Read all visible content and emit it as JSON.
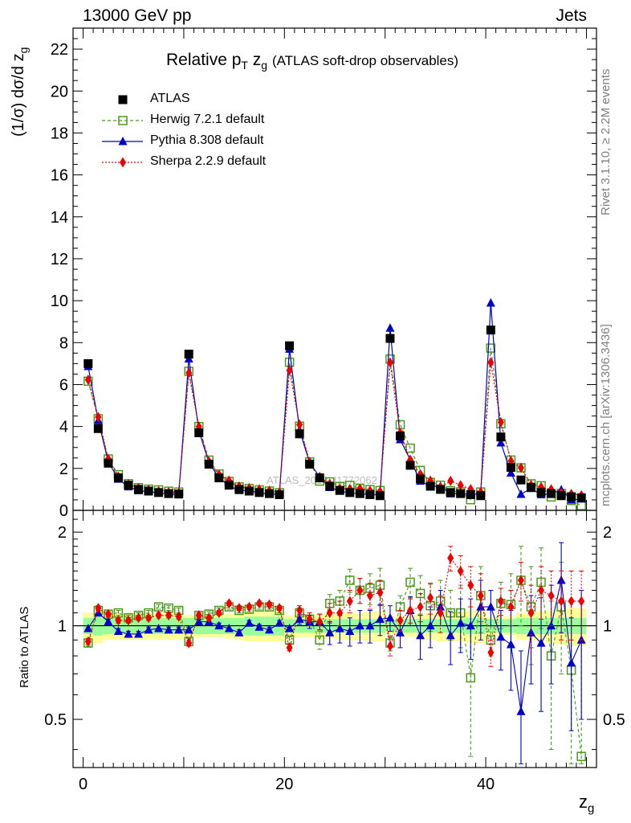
{
  "header": {
    "left": "13000 GeV pp",
    "right": "Jets"
  },
  "side_labels": {
    "top": "Rivet 3.1.10, ≥ 2.2M events",
    "bottom": "mcplots.cern.ch [arXiv:1306.3436]"
  },
  "watermark": "ATLAS_2019_I1772062",
  "chart_data": {
    "type": "scatter",
    "title": "Relative p_T z_g (ATLAS soft-drop observables)",
    "title_main": "Relative p",
    "title_sub": "T",
    "title_zg": "z",
    "title_zg_sub": "g",
    "title_rest": "(ATLAS soft-drop observables)",
    "xlabel": "z_g",
    "xlabel_main": "z",
    "xlabel_sub": "g",
    "ylabel": "(1/σ) dσ/d z_g",
    "ylabel_main": "(1/σ) dσ/d z",
    "ylabel_sub": "g",
    "ratio_ylabel": "Ratio to ATLAS",
    "xlim": [
      -1,
      51
    ],
    "ylim": [
      0,
      23
    ],
    "ratio_ylim": [
      0.35,
      2.35
    ],
    "x_ticks": [
      0,
      20,
      40
    ],
    "y_ticks": [
      0,
      2,
      4,
      6,
      8,
      10,
      12,
      14,
      16,
      18,
      20,
      22
    ],
    "ratio_ticks": [
      0.5,
      1,
      2
    ],
    "legend_position": "top-left",
    "x": [
      0.5,
      1.5,
      2.5,
      3.5,
      4.5,
      5.5,
      6.5,
      7.5,
      8.5,
      9.5,
      10.5,
      11.5,
      12.5,
      13.5,
      14.5,
      15.5,
      16.5,
      17.5,
      18.5,
      19.5,
      20.5,
      21.5,
      22.5,
      23.5,
      24.5,
      25.5,
      26.5,
      27.5,
      28.5,
      29.5,
      30.5,
      31.5,
      32.5,
      33.5,
      34.5,
      35.5,
      36.5,
      37.5,
      38.5,
      39.5,
      40.5,
      41.5,
      42.5,
      43.5,
      44.5,
      45.5,
      46.5,
      47.5,
      48.5,
      49.5
    ],
    "series": [
      {
        "name": "ATLAS",
        "color": "#000000",
        "marker": "square",
        "values": [
          7.0,
          3.9,
          2.25,
          1.55,
          1.2,
          1.0,
          0.92,
          0.85,
          0.8,
          0.78,
          7.45,
          3.7,
          2.2,
          1.55,
          1.2,
          1.0,
          0.92,
          0.85,
          0.8,
          0.75,
          7.85,
          3.65,
          2.2,
          1.55,
          1.15,
          0.95,
          0.85,
          0.8,
          0.75,
          0.7,
          8.2,
          3.55,
          2.15,
          1.5,
          1.15,
          1.0,
          0.85,
          0.8,
          0.75,
          0.7,
          8.6,
          3.5,
          2.05,
          1.45,
          1.1,
          0.85,
          0.8,
          0.7,
          0.65,
          0.6
        ],
        "band_inner": [
          0.06,
          0.07,
          0.06,
          0.06,
          0.06,
          0.06,
          0.06,
          0.06,
          0.06,
          0.06,
          0.06,
          0.06,
          0.06,
          0.06,
          0.06,
          0.06,
          0.07,
          0.07,
          0.07,
          0.07,
          0.05,
          0.05,
          0.05,
          0.05,
          0.05,
          0.05,
          0.05,
          0.05,
          0.05,
          0.05,
          0.04,
          0.05,
          0.05,
          0.05,
          0.05,
          0.05,
          0.05,
          0.05,
          0.06,
          0.06,
          0.05,
          0.05,
          0.05,
          0.06,
          0.06,
          0.06,
          0.06,
          0.06,
          0.06,
          0.06
        ],
        "band_outer": [
          0.1,
          0.12,
          0.1,
          0.1,
          0.1,
          0.1,
          0.1,
          0.1,
          0.1,
          0.1,
          0.08,
          0.08,
          0.08,
          0.08,
          0.09,
          0.1,
          0.11,
          0.11,
          0.11,
          0.11,
          0.08,
          0.08,
          0.08,
          0.09,
          0.09,
          0.1,
          0.1,
          0.1,
          0.11,
          0.11,
          0.06,
          0.07,
          0.08,
          0.09,
          0.1,
          0.11,
          0.11,
          0.11,
          0.12,
          0.12,
          0.07,
          0.07,
          0.07,
          0.1,
          0.1,
          0.11,
          0.12,
          0.13,
          0.14,
          0.14
        ]
      },
      {
        "name": "Herwig 7.2.1 default",
        "color": "#4b9a1c",
        "marker": "open-square",
        "line": "dashed",
        "values": [
          0.88,
          1.12,
          1.09,
          1.1,
          1.06,
          1.08,
          1.1,
          1.15,
          1.14,
          1.12,
          0.89,
          1.08,
          1.09,
          1.12,
          1.15,
          1.12,
          1.13,
          1.15,
          1.15,
          1.12,
          0.9,
          1.1,
          1.05,
          0.9,
          1.18,
          1.2,
          1.4,
          1.3,
          1.32,
          1.35,
          0.88,
          1.15,
          1.38,
          1.27,
          1.16,
          1.2,
          1.1,
          1.1,
          0.68,
          1.25,
          0.9,
          1.18,
          1.17,
          1.4,
          1.15,
          1.38,
          0.8,
          1.15,
          0.72,
          0.38
        ],
        "errors": [
          0.02,
          0.02,
          0.02,
          0.02,
          0.02,
          0.02,
          0.02,
          0.02,
          0.02,
          0.02,
          0.02,
          0.02,
          0.02,
          0.02,
          0.02,
          0.02,
          0.02,
          0.02,
          0.02,
          0.02,
          0.02,
          0.04,
          0.05,
          0.06,
          0.08,
          0.1,
          0.12,
          0.12,
          0.15,
          0.18,
          0.05,
          0.1,
          0.15,
          0.18,
          0.2,
          0.2,
          0.2,
          0.25,
          0.3,
          0.3,
          0.1,
          0.2,
          0.3,
          0.4,
          0.4,
          0.4,
          0.4,
          0.45,
          0.5,
          0.5
        ]
      },
      {
        "name": "Pythia 8.308 default",
        "color": "#0000cc",
        "marker": "triangle",
        "line": "solid",
        "values": [
          0.98,
          1.1,
          1.03,
          0.96,
          0.94,
          0.94,
          0.97,
          0.98,
          0.97,
          0.97,
          0.97,
          1.03,
          1.03,
          1.0,
          0.98,
          0.95,
          1.02,
          0.99,
          0.97,
          1.02,
          0.98,
          1.05,
          1.03,
          1.03,
          0.95,
          0.98,
          0.96,
          1.0,
          1.0,
          1.05,
          1.06,
          0.95,
          1.12,
          0.93,
          1.0,
          1.15,
          0.93,
          1.02,
          1.0,
          1.15,
          1.15,
          0.92,
          0.87,
          0.53,
          0.95,
          0.88,
          1.0,
          1.4,
          0.76,
          0.9
        ],
        "errors": [
          0.02,
          0.02,
          0.02,
          0.02,
          0.02,
          0.02,
          0.02,
          0.02,
          0.02,
          0.02,
          0.02,
          0.02,
          0.02,
          0.02,
          0.02,
          0.02,
          0.02,
          0.02,
          0.02,
          0.02,
          0.02,
          0.04,
          0.05,
          0.06,
          0.08,
          0.1,
          0.1,
          0.12,
          0.12,
          0.12,
          0.1,
          0.1,
          0.12,
          0.15,
          0.15,
          0.15,
          0.18,
          0.2,
          0.22,
          0.25,
          0.15,
          0.2,
          0.25,
          0.3,
          0.3,
          0.35,
          0.35,
          0.45,
          0.3,
          0.4
        ]
      },
      {
        "name": "Sherpa 2.2.9 default",
        "color": "#ee0000",
        "marker": "diamond",
        "line": "dotted",
        "values": [
          0.89,
          1.14,
          1.09,
          1.04,
          1.04,
          1.06,
          1.06,
          1.08,
          1.08,
          1.07,
          0.88,
          1.08,
          1.06,
          1.1,
          1.18,
          1.14,
          1.15,
          1.18,
          1.17,
          1.14,
          0.85,
          1.12,
          1.05,
          1.03,
          1.1,
          1.1,
          1.2,
          1.3,
          1.25,
          1.28,
          0.86,
          1.04,
          1.12,
          1.15,
          1.23,
          1.1,
          1.65,
          1.5,
          1.35,
          1.25,
          0.82,
          1.2,
          1.15,
          1.4,
          1.1,
          1.3,
          1.25,
          1.2,
          1.2,
          1.2
        ],
        "errors": [
          0.02,
          0.02,
          0.02,
          0.02,
          0.02,
          0.02,
          0.02,
          0.02,
          0.02,
          0.02,
          0.02,
          0.02,
          0.02,
          0.02,
          0.02,
          0.02,
          0.02,
          0.02,
          0.02,
          0.02,
          0.02,
          0.04,
          0.05,
          0.06,
          0.08,
          0.1,
          0.1,
          0.12,
          0.12,
          0.12,
          0.06,
          0.08,
          0.1,
          0.12,
          0.14,
          0.15,
          0.15,
          0.18,
          0.2,
          0.22,
          0.08,
          0.12,
          0.15,
          0.2,
          0.25,
          0.25,
          0.25,
          0.3,
          0.3,
          0.3
        ]
      }
    ]
  }
}
